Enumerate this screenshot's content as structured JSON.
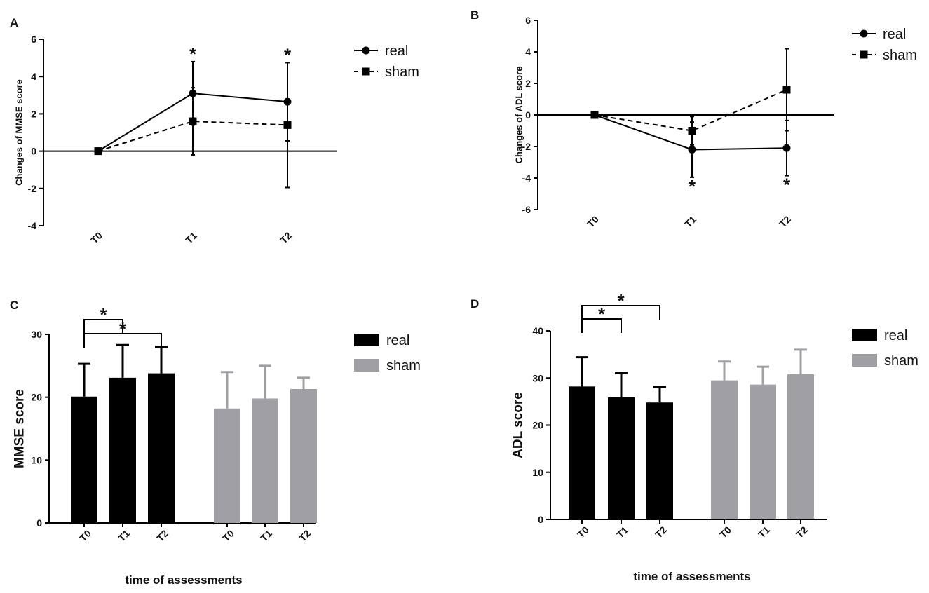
{
  "chart_data": [
    {
      "panel": "A",
      "type": "line",
      "ylabel": "Changes of MMSE score",
      "ylim": [
        -4,
        6
      ],
      "yticks": [
        -4,
        -2,
        0,
        2,
        4,
        6
      ],
      "categories": [
        "T0",
        "T1",
        "T2"
      ],
      "series": [
        {
          "name": "real",
          "marker": "circle",
          "dashed": false,
          "values": [
            0,
            3.1,
            2.65
          ],
          "err": [
            0,
            1.7,
            2.1
          ]
        },
        {
          "name": "sham",
          "marker": "square",
          "dashed": true,
          "values": [
            0,
            1.6,
            1.4
          ],
          "err": [
            0,
            1.8,
            3.35
          ]
        }
      ],
      "stars": [
        {
          "x": 1,
          "label": "*"
        },
        {
          "x": 2,
          "label": "*"
        }
      ]
    },
    {
      "panel": "B",
      "type": "line",
      "ylabel": "Changes of ADL score",
      "ylim": [
        -6,
        6
      ],
      "yticks": [
        -6,
        -4,
        -2,
        0,
        2,
        4,
        6
      ],
      "categories": [
        "T0",
        "T1",
        "T2"
      ],
      "series": [
        {
          "name": "real",
          "marker": "circle",
          "dashed": false,
          "values": [
            0,
            -2.2,
            -2.1
          ],
          "err": [
            0,
            1.75,
            1.75
          ]
        },
        {
          "name": "sham",
          "marker": "square",
          "dashed": true,
          "values": [
            0,
            -1.0,
            1.6
          ],
          "err": [
            0,
            0.9,
            2.6
          ]
        }
      ],
      "stars": [
        {
          "x": 1,
          "label": "*"
        },
        {
          "x": 2,
          "label": "*"
        }
      ]
    },
    {
      "panel": "C",
      "type": "bar",
      "ylabel": "MMSE score",
      "xlabel": "time of assessments",
      "ylim": [
        0,
        30
      ],
      "yticks": [
        0,
        10,
        20,
        30
      ],
      "categories": [
        "T0",
        "T1",
        "T2"
      ],
      "series": [
        {
          "name": "real",
          "color": "#000000",
          "values": [
            20.1,
            23.1,
            23.8
          ],
          "err": [
            5.2,
            5.2,
            4.2
          ]
        },
        {
          "name": "sham",
          "color": "#a0a0a4",
          "values": [
            18.2,
            19.8,
            21.3
          ],
          "err": [
            5.8,
            5.2,
            1.8
          ]
        }
      ],
      "brackets": [
        {
          "from": 0,
          "to": 1,
          "label": "*"
        },
        {
          "from": 0,
          "to": 2,
          "label": "*"
        }
      ]
    },
    {
      "panel": "D",
      "type": "bar",
      "ylabel": "ADL score",
      "xlabel": "time of assessments",
      "ylim": [
        0,
        40
      ],
      "yticks": [
        0,
        10,
        20,
        30,
        40
      ],
      "categories": [
        "T0",
        "T1",
        "T2"
      ],
      "series": [
        {
          "name": "real",
          "color": "#000000",
          "values": [
            28.2,
            25.9,
            24.8
          ],
          "err": [
            6.2,
            5.1,
            3.3
          ]
        },
        {
          "name": "sham",
          "color": "#a0a0a4",
          "values": [
            29.5,
            28.6,
            30.8
          ],
          "err": [
            4.0,
            3.8,
            5.2
          ]
        }
      ],
      "brackets": [
        {
          "from": 0,
          "to": 1,
          "label": "*"
        },
        {
          "from": 0,
          "to": 2,
          "label": "*"
        }
      ]
    }
  ]
}
